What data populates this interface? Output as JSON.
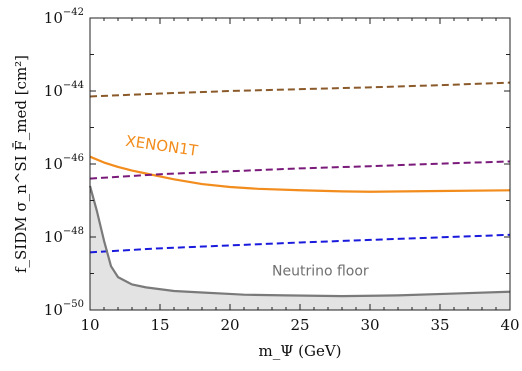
{
  "chart_data": {
    "type": "line",
    "xlabel": "m_Ψ (GeV)",
    "ylabel": "f_SIDM σ_n^SI F̄_med [cm²]",
    "x_ticks": [
      "10",
      "15",
      "20",
      "25",
      "30",
      "35",
      "40"
    ],
    "y_ticks": [
      {
        "base": "10",
        "exp": "−42"
      },
      {
        "base": "10",
        "exp": "−44"
      },
      {
        "base": "10",
        "exp": "−46"
      },
      {
        "base": "10",
        "exp": "−48"
      },
      {
        "base": "10",
        "exp": "−50"
      }
    ],
    "xlim": [
      10,
      40
    ],
    "ylim_log10": [
      -50,
      -42
    ],
    "y_scale": "log",
    "grid": false,
    "series": [
      {
        "name": "XENON1T",
        "color": "#f28c1c",
        "dash": "solid",
        "x": [
          10,
          11,
          12,
          13,
          14,
          15,
          16,
          18,
          20,
          22,
          25,
          28,
          30,
          35,
          40
        ],
        "log10_y": [
          -45.8,
          -45.96,
          -46.08,
          -46.18,
          -46.26,
          -46.34,
          -46.42,
          -46.55,
          -46.63,
          -46.68,
          -46.72,
          -46.75,
          -46.76,
          -46.74,
          -46.72
        ]
      },
      {
        "name": "",
        "color": "#8b5a2b",
        "dash": "dashed",
        "x": [
          10,
          15,
          20,
          25,
          30,
          35,
          40
        ],
        "log10_y": [
          -44.15,
          -44.07,
          -44.0,
          -43.95,
          -43.9,
          -43.84,
          -43.77
        ]
      },
      {
        "name": "",
        "color": "#7a1a7a",
        "dash": "dashed",
        "x": [
          10,
          15,
          20,
          25,
          30,
          35,
          40
        ],
        "log10_y": [
          -46.4,
          -46.28,
          -46.2,
          -46.12,
          -46.06,
          -45.99,
          -45.93
        ]
      },
      {
        "name": "",
        "color": "#1a1adc",
        "dash": "dashed",
        "x": [
          10,
          15,
          20,
          25,
          30,
          35,
          40
        ],
        "log10_y": [
          -48.42,
          -48.31,
          -48.23,
          -48.15,
          -48.08,
          -48.01,
          -47.94
        ]
      },
      {
        "name": "Neutrino floor",
        "color": "#7a7a7a",
        "dash": "solid",
        "fill": "#e3e3e3",
        "x": [
          10,
          10.5,
          11,
          11.5,
          12,
          13,
          14,
          16,
          18,
          20,
          21,
          24,
          28,
          32,
          36,
          40
        ],
        "log10_y": [
          -46.6,
          -47.3,
          -48.1,
          -48.8,
          -49.1,
          -49.3,
          -49.38,
          -49.48,
          -49.52,
          -49.56,
          -49.58,
          -49.6,
          -49.62,
          -49.6,
          -49.55,
          -49.5
        ]
      }
    ],
    "annotations": [
      {
        "text": "XENON1T",
        "x": 12.5,
        "log10_y": -45.5,
        "rotate": 8
      },
      {
        "text": "Neutrino floor",
        "x": 23,
        "log10_y": -49.05,
        "rotate": 0
      }
    ]
  }
}
